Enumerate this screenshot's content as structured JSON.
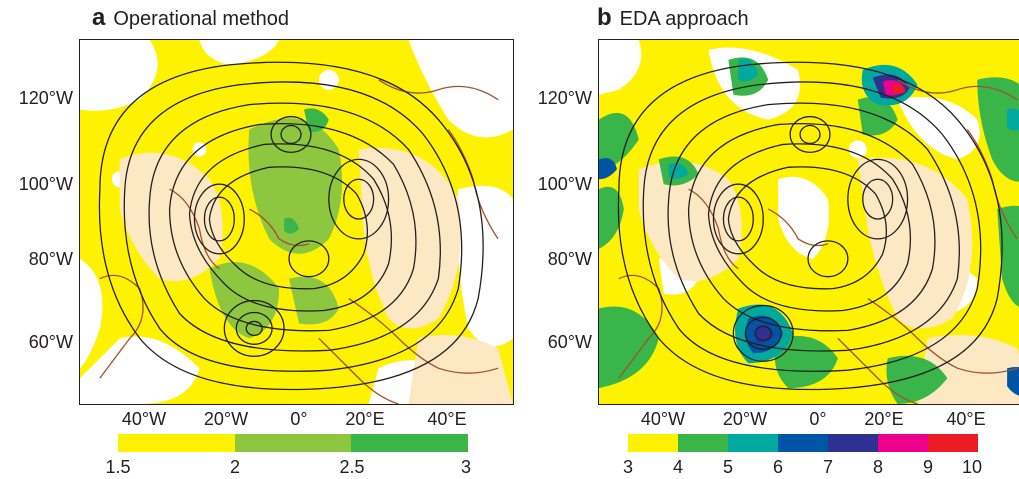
{
  "panels": [
    {
      "letter": "a",
      "title": "Operational method",
      "lat_labels": [
        "120°W",
        "100°W",
        "80°W",
        "60°W"
      ],
      "lon_labels": [
        "40°W",
        "20°W",
        "0°",
        "20°E",
        "40°E"
      ],
      "colorbar": {
        "ticks": [
          "1.5",
          "2",
          "2.5",
          "3"
        ],
        "colors": [
          "#fff200",
          "#8dc63f",
          "#39b54a"
        ]
      }
    },
    {
      "letter": "b",
      "title": "EDA approach",
      "lat_labels": [
        "120°W",
        "100°W",
        "80°W",
        "60°W"
      ],
      "lon_labels": [
        "40°W",
        "20°W",
        "0°",
        "20°E",
        "40°E"
      ],
      "colorbar": {
        "ticks": [
          "3",
          "4",
          "5",
          "6",
          "7",
          "8",
          "9",
          "10"
        ],
        "colors": [
          "#fff200",
          "#39b54a",
          "#00a99d",
          "#0054a6",
          "#2e3192",
          "#ec008c",
          "#ed1c24"
        ]
      }
    }
  ],
  "colors": {
    "land_fill": "#fde8c4",
    "coastline": "#a0522d",
    "contour": "#231f20",
    "frame": "#231f20"
  }
}
